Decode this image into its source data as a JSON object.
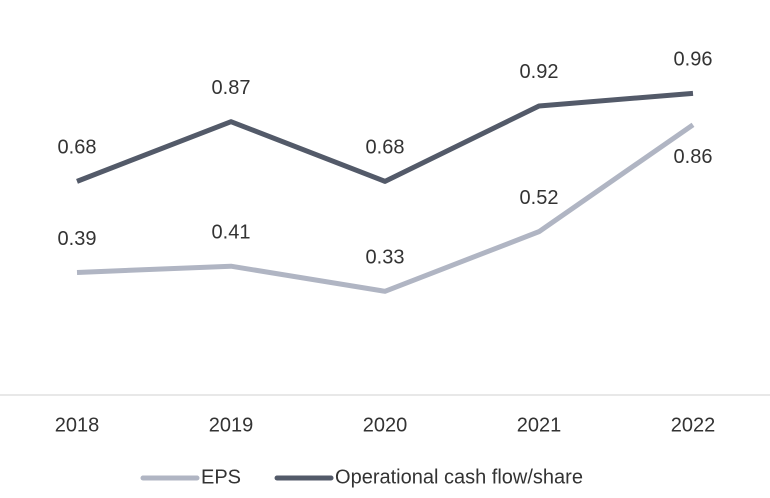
{
  "chart_data": {
    "type": "line",
    "categories": [
      "2018",
      "2019",
      "2020",
      "2021",
      "2022"
    ],
    "series": [
      {
        "name": "EPS",
        "color": "#b0b5c3",
        "values": [
          0.39,
          0.41,
          0.33,
          0.52,
          0.86
        ]
      },
      {
        "name": "Operational cash flow/share",
        "color": "#535a69",
        "values": [
          0.68,
          0.87,
          0.68,
          0.92,
          0.96
        ]
      }
    ],
    "ylim": [
      0,
      1.2
    ],
    "legend": "bottom"
  }
}
